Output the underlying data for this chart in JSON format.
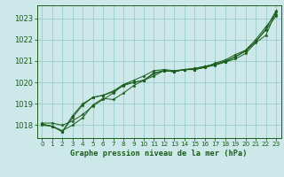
{
  "bg_color": "#cce8e8",
  "grid_color": "#99cccc",
  "line_color": "#1a5c1a",
  "marker_color": "#1a5c1a",
  "title": "Graphe pression niveau de la mer (hPa)",
  "xlim": [
    -0.5,
    23.5
  ],
  "ylim": [
    1017.4,
    1023.6
  ],
  "yticks": [
    1018,
    1019,
    1020,
    1021,
    1022,
    1023
  ],
  "xticks": [
    0,
    1,
    2,
    3,
    4,
    5,
    6,
    7,
    8,
    9,
    10,
    11,
    12,
    13,
    14,
    15,
    16,
    17,
    18,
    19,
    20,
    21,
    22,
    23
  ],
  "series": [
    [
      1018.1,
      1018.1,
      1018.0,
      1018.2,
      1018.5,
      1018.9,
      1019.2,
      1019.5,
      1019.9,
      1020.1,
      1020.3,
      1020.55,
      1020.6,
      1020.55,
      1020.6,
      1020.65,
      1020.75,
      1020.85,
      1020.95,
      1021.1,
      1021.35,
      1021.85,
      1022.2,
      1023.3
    ],
    [
      1018.05,
      1017.95,
      1017.75,
      1018.0,
      1018.35,
      1018.95,
      1019.25,
      1019.2,
      1019.5,
      1019.85,
      1020.1,
      1020.4,
      1020.55,
      1020.5,
      1020.6,
      1020.65,
      1020.75,
      1020.85,
      1021.0,
      1021.2,
      1021.45,
      1021.9,
      1022.5,
      1023.35
    ],
    [
      1018.05,
      1017.95,
      1017.7,
      1018.35,
      1018.95,
      1019.3,
      1019.4,
      1019.55,
      1019.85,
      1020.0,
      1020.1,
      1020.45,
      1020.55,
      1020.5,
      1020.6,
      1020.6,
      1020.7,
      1020.8,
      1020.95,
      1021.2,
      1021.5,
      1021.9,
      1022.45,
      1023.1
    ],
    [
      1018.0,
      1017.95,
      1017.7,
      1018.45,
      1019.0,
      1019.3,
      1019.4,
      1019.6,
      1019.9,
      1020.0,
      1020.1,
      1020.3,
      1020.55,
      1020.5,
      1020.6,
      1020.6,
      1020.7,
      1020.9,
      1021.05,
      1021.3,
      1021.5,
      1022.0,
      1022.6,
      1023.2
    ]
  ]
}
